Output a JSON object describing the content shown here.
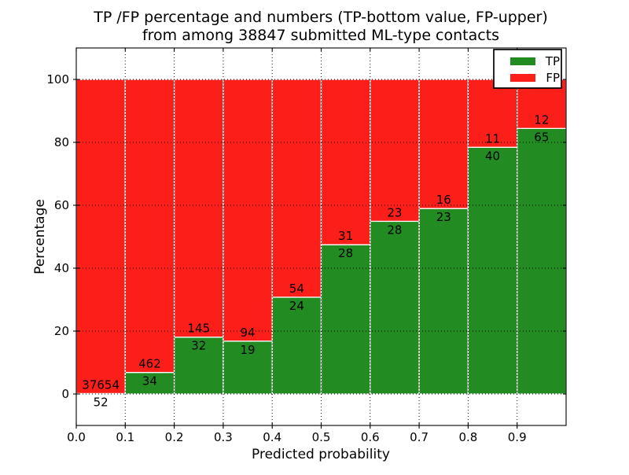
{
  "figure": {
    "title_line1": "TP /FP percentage and numbers (TP-bottom value, FP-upper)",
    "title_line2": "from among 38847 submitted ML-type contacts",
    "xlabel": "Predicted probability",
    "ylabel": "Percentage"
  },
  "legend": {
    "position": "upper right",
    "entries": [
      {
        "label": "TP",
        "color": "#228b22"
      },
      {
        "label": "FP",
        "color": "#fc1e19"
      }
    ]
  },
  "chart_data": {
    "type": "bar",
    "stacked": true,
    "units": "percent",
    "title": "TP /FP percentage and numbers (TP-bottom value, FP-upper) from among 38847 submitted ML-type contacts",
    "xlabel": "Predicted probability",
    "ylabel": "Percentage",
    "total_submitted_contacts": 38847,
    "xlim": [
      0.0,
      1.0
    ],
    "ylim": [
      -10,
      110
    ],
    "x_ticks": [
      0.0,
      0.1,
      0.2,
      0.3,
      0.4,
      0.5,
      0.6,
      0.7,
      0.8,
      0.9
    ],
    "x_tick_labels": [
      "0.0",
      "0.1",
      "0.2",
      "0.3",
      "0.4",
      "0.5",
      "0.6",
      "0.7",
      "0.8",
      "0.9"
    ],
    "y_ticks": [
      0,
      20,
      40,
      60,
      80,
      100
    ],
    "y_tick_labels": [
      "0",
      "20",
      "40",
      "60",
      "80",
      "100"
    ],
    "grid": true,
    "bar_bins": [
      [
        0.0,
        0.1
      ],
      [
        0.1,
        0.2
      ],
      [
        0.2,
        0.3
      ],
      [
        0.3,
        0.4
      ],
      [
        0.4,
        0.5
      ],
      [
        0.5,
        0.6
      ],
      [
        0.6,
        0.7
      ],
      [
        0.7,
        0.8
      ],
      [
        0.8,
        0.9
      ],
      [
        0.9,
        1.0
      ]
    ],
    "series": [
      {
        "name": "TP",
        "color": "#228b22",
        "counts": [
          52,
          34,
          32,
          19,
          24,
          28,
          28,
          23,
          40,
          65
        ],
        "percentages": [
          0.14,
          6.85,
          18.08,
          16.81,
          30.77,
          47.46,
          54.9,
          58.97,
          78.43,
          84.42
        ]
      },
      {
        "name": "FP",
        "color": "#fc1e19",
        "counts": [
          37654,
          462,
          145,
          94,
          54,
          31,
          23,
          16,
          11,
          12
        ],
        "percentages": [
          99.86,
          93.15,
          81.92,
          83.19,
          69.23,
          52.54,
          45.1,
          41.03,
          21.57,
          15.58
        ]
      }
    ]
  }
}
